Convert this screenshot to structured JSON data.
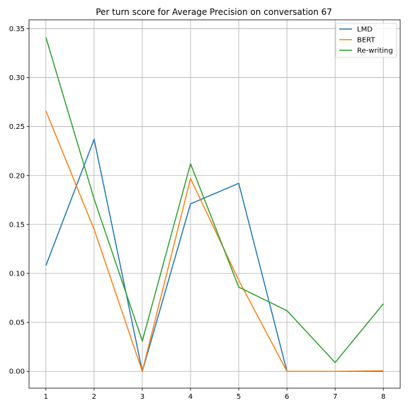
{
  "chart_data": {
    "type": "line",
    "title": "Per turn score for Average Precision on conversation 67",
    "xlabel": "",
    "ylabel": "",
    "x": [
      1,
      2,
      3,
      4,
      5,
      6,
      7,
      8
    ],
    "xlim": [
      0.65,
      8.35
    ],
    "ylim": [
      -0.0172,
      0.359
    ],
    "xticks": [
      "1",
      "2",
      "3",
      "4",
      "5",
      "6",
      "7",
      "8"
    ],
    "yticks": [
      "0.00",
      "0.05",
      "0.10",
      "0.15",
      "0.20",
      "0.25",
      "0.30",
      "0.35"
    ],
    "grid": true,
    "legend_position": "top-right",
    "series": [
      {
        "name": "LMD",
        "color": "#1f77b4",
        "values": [
          0.108,
          0.237,
          0.0,
          0.171,
          0.192,
          0.0,
          0.0,
          0.0
        ]
      },
      {
        "name": "BERT",
        "color": "#ff7f0e",
        "values": [
          0.266,
          0.145,
          0.0,
          0.197,
          0.093,
          0.0,
          0.0,
          0.0005
        ]
      },
      {
        "name": "Re-writing",
        "color": "#2ca02c",
        "values": [
          0.341,
          0.176,
          0.031,
          0.212,
          0.086,
          0.062,
          0.009,
          0.069
        ]
      }
    ]
  }
}
